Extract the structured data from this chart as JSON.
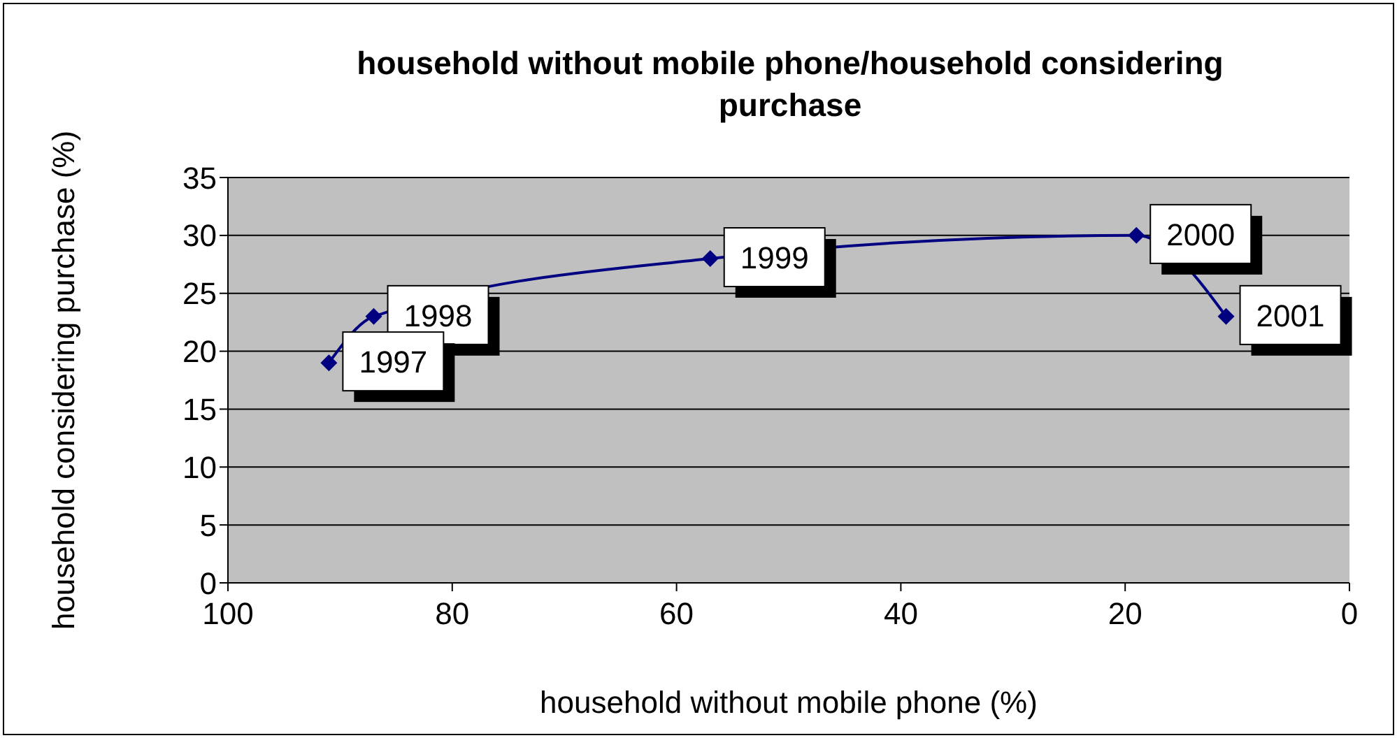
{
  "chart_data": {
    "type": "line",
    "title": "household without mobile phone/household considering purchase",
    "xlabel": "household without mobile phone (%)",
    "ylabel": "household considering purchase (%)",
    "x": [
      91,
      87,
      57,
      19,
      11
    ],
    "series": [
      {
        "color": "#000080",
        "values": [
          19,
          23,
          28,
          30,
          23
        ]
      }
    ],
    "xlim": [
      100,
      0
    ],
    "xticks": [
      100,
      80,
      60,
      40,
      20,
      0
    ],
    "ylim": [
      0,
      35
    ],
    "yticks": [
      0,
      5,
      10,
      15,
      20,
      25,
      30,
      35
    ],
    "grid": "y",
    "legend": false,
    "marker": "diamond",
    "line_style": "solid",
    "annotations": [
      {
        "text": "1997",
        "x": 91,
        "y": 19
      },
      {
        "text": "1998",
        "x": 87,
        "y": 23
      },
      {
        "text": "1999",
        "x": 57,
        "y": 28
      },
      {
        "text": "2000",
        "x": 19,
        "y": 30
      },
      {
        "text": "2001",
        "x": 11,
        "y": 23
      }
    ]
  }
}
